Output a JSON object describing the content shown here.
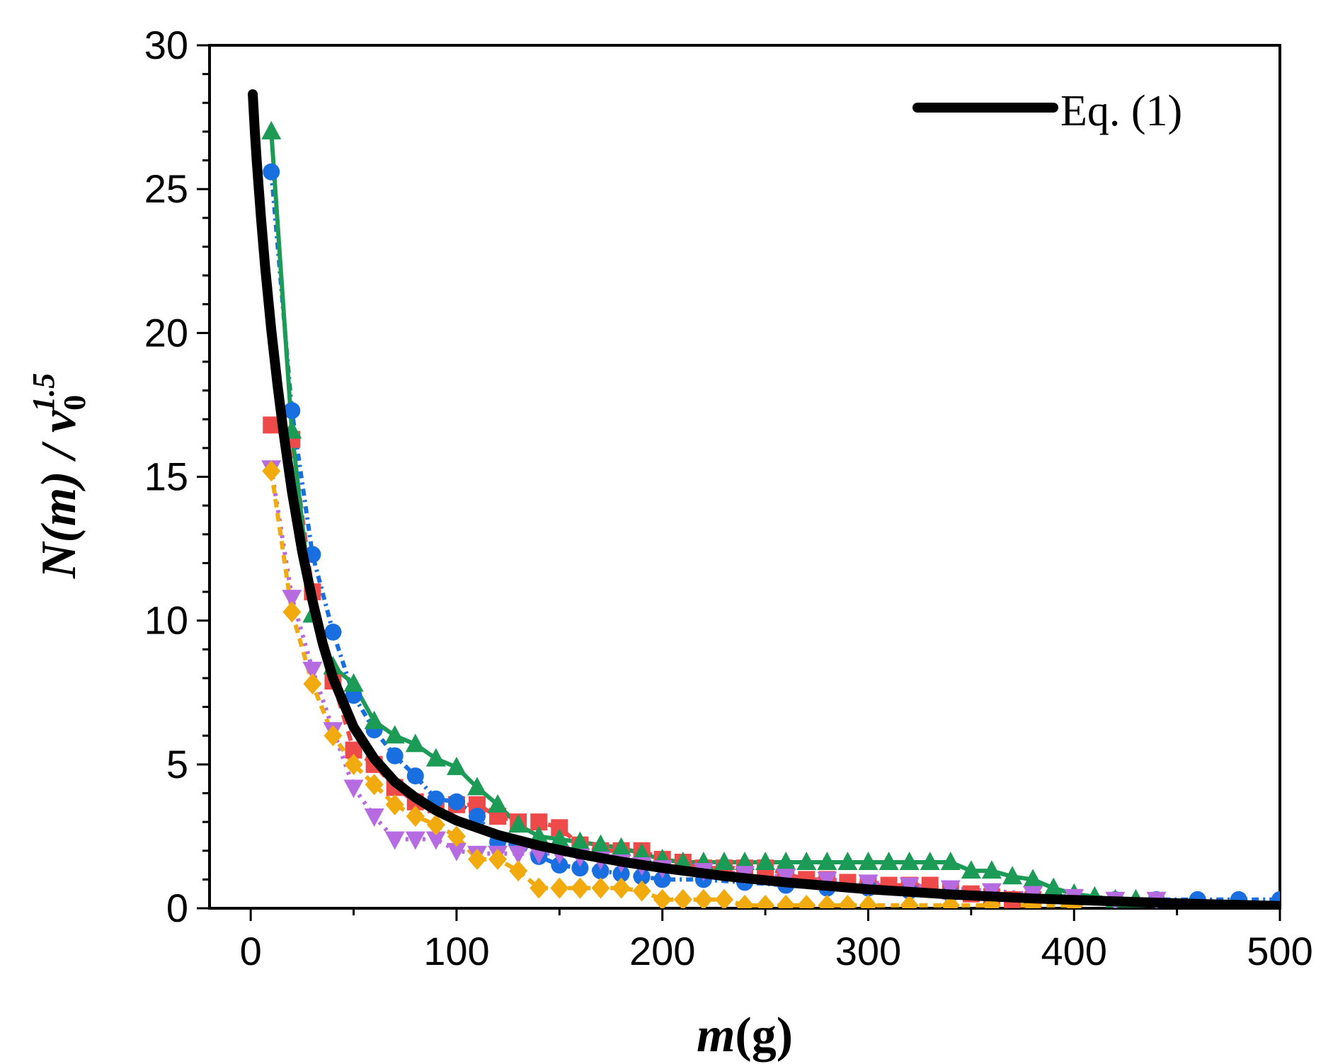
{
  "chart_data": {
    "type": "line",
    "xlabel_italic": "m",
    "xlabel_rest": "(g)",
    "ylabel_parts": {
      "N": "N",
      "m_open": "(",
      "m": "m",
      "m_close": ")",
      "slash": " / ",
      "v": "v",
      "sub": "0",
      "sup": "1.5"
    },
    "xlim": [
      -20,
      500
    ],
    "ylim": [
      0,
      30
    ],
    "xticks": [
      0,
      100,
      200,
      300,
      400,
      500
    ],
    "yticks": [
      0,
      5,
      10,
      15,
      20,
      25,
      30
    ],
    "xtick_labels": [
      "0",
      "100",
      "200",
      "300",
      "400",
      "500"
    ],
    "ytick_labels": [
      "0",
      "5",
      "10",
      "15",
      "20",
      "25",
      "30"
    ],
    "legend": {
      "label": "Eq. (1)",
      "position": "top-right"
    },
    "model_curve": {
      "name": "Eq. (1)",
      "color": "#000000",
      "x": [
        1,
        2,
        3,
        5,
        7,
        10,
        13,
        16,
        20,
        25,
        30,
        35,
        40,
        50,
        60,
        70,
        80,
        90,
        100,
        120,
        140,
        160,
        180,
        200,
        230,
        260,
        300,
        340,
        380,
        420,
        460,
        500
      ],
      "y": [
        28.3,
        27.0,
        25.9,
        24.0,
        22.3,
        20.1,
        18.2,
        16.5,
        14.5,
        12.4,
        10.7,
        9.2,
        8.0,
        6.3,
        5.2,
        4.4,
        3.85,
        3.4,
        3.05,
        2.55,
        2.18,
        1.88,
        1.62,
        1.4,
        1.12,
        0.9,
        0.66,
        0.48,
        0.34,
        0.24,
        0.15,
        0.08
      ]
    },
    "series": [
      {
        "color": "#ef4a4a",
        "marker": "square",
        "dash": "14,10",
        "x": [
          10,
          20,
          30,
          40,
          50,
          60,
          70,
          80,
          90,
          100,
          110,
          120,
          130,
          140,
          150,
          160,
          170,
          180,
          190,
          200,
          210,
          220,
          230,
          240,
          250,
          260,
          270,
          280,
          290,
          300,
          310,
          320,
          330,
          340,
          350,
          360,
          370,
          380
        ],
        "y": [
          16.8,
          16.3,
          11.0,
          7.9,
          5.5,
          5.0,
          4.2,
          3.7,
          3.6,
          3.6,
          3.6,
          3.2,
          3.0,
          3.0,
          2.8,
          2.2,
          2.0,
          2.0,
          2.0,
          1.7,
          1.6,
          1.4,
          1.4,
          1.4,
          1.4,
          1.2,
          1.0,
          1.0,
          0.9,
          0.8,
          0.8,
          0.8,
          0.8,
          0.6,
          0.5,
          0.4,
          0.3,
          0.3
        ]
      },
      {
        "color": "#1a6fe0",
        "marker": "circle",
        "dash": "10,6,3,6",
        "x": [
          10,
          20,
          30,
          40,
          50,
          60,
          70,
          80,
          90,
          100,
          110,
          120,
          130,
          140,
          150,
          160,
          170,
          180,
          190,
          200,
          220,
          240,
          260,
          280,
          300,
          320,
          340,
          360,
          380,
          400,
          420,
          440,
          460,
          480,
          500
        ],
        "y": [
          25.6,
          17.3,
          12.3,
          9.6,
          7.4,
          6.2,
          5.3,
          4.6,
          3.8,
          3.7,
          3.2,
          2.3,
          2.2,
          1.8,
          1.5,
          1.4,
          1.3,
          1.2,
          1.1,
          1.0,
          1.0,
          0.9,
          0.8,
          0.7,
          0.7,
          0.6,
          0.5,
          0.4,
          0.35,
          0.3,
          0.3,
          0.3,
          0.3,
          0.3,
          0.3
        ]
      },
      {
        "color": "#1c9b57",
        "marker": "triangle-up",
        "dash": "",
        "x": [
          10,
          20,
          30,
          40,
          50,
          60,
          70,
          80,
          90,
          100,
          110,
          120,
          130,
          140,
          150,
          160,
          170,
          180,
          190,
          200,
          210,
          220,
          230,
          240,
          250,
          260,
          270,
          280,
          290,
          300,
          310,
          320,
          330,
          340,
          350,
          360,
          370,
          380,
          390,
          400,
          410,
          420,
          430
        ],
        "y": [
          27.0,
          16.6,
          10.2,
          8.4,
          7.8,
          6.5,
          6.0,
          5.7,
          5.2,
          4.9,
          4.2,
          3.6,
          2.9,
          2.5,
          2.4,
          2.3,
          2.2,
          2.1,
          1.9,
          1.7,
          1.6,
          1.6,
          1.6,
          1.6,
          1.6,
          1.6,
          1.6,
          1.6,
          1.6,
          1.6,
          1.6,
          1.6,
          1.6,
          1.6,
          1.3,
          1.3,
          1.1,
          1.0,
          0.7,
          0.5,
          0.4,
          0.3,
          0.3
        ]
      },
      {
        "color": "#b66be0",
        "marker": "triangle-down",
        "dash": "4,8",
        "x": [
          10,
          20,
          30,
          40,
          50,
          60,
          70,
          80,
          90,
          100,
          110,
          120,
          130,
          140,
          150,
          160,
          170,
          180,
          190,
          200,
          220,
          240,
          260,
          280,
          300,
          320,
          340,
          360,
          380,
          400,
          420,
          440
        ],
        "y": [
          15.3,
          10.8,
          8.3,
          6.2,
          4.2,
          3.2,
          2.4,
          2.4,
          2.4,
          2.0,
          1.9,
          1.9,
          1.9,
          1.9,
          1.9,
          1.8,
          1.7,
          1.6,
          1.5,
          1.4,
          1.3,
          1.2,
          1.1,
          1.0,
          0.9,
          0.8,
          0.7,
          0.6,
          0.5,
          0.4,
          0.3,
          0.3
        ]
      },
      {
        "color": "#f2ab0e",
        "marker": "diamond",
        "dash": "12,8",
        "x": [
          10,
          20,
          30,
          40,
          50,
          60,
          70,
          80,
          90,
          100,
          110,
          120,
          130,
          140,
          150,
          160,
          170,
          180,
          190,
          200,
          210,
          220,
          230,
          240,
          250,
          260,
          270,
          280,
          290,
          300,
          320,
          340,
          360,
          380,
          400
        ],
        "y": [
          15.2,
          10.3,
          7.8,
          6.0,
          5.0,
          4.3,
          3.6,
          3.2,
          2.9,
          2.5,
          1.7,
          1.7,
          1.3,
          0.7,
          0.7,
          0.7,
          0.7,
          0.7,
          0.6,
          0.3,
          0.3,
          0.3,
          0.3,
          0.1,
          0.1,
          0.1,
          0.1,
          0.1,
          0.1,
          0.1,
          0.1,
          0.1,
          0.1,
          0.1,
          0.1
        ]
      }
    ]
  }
}
